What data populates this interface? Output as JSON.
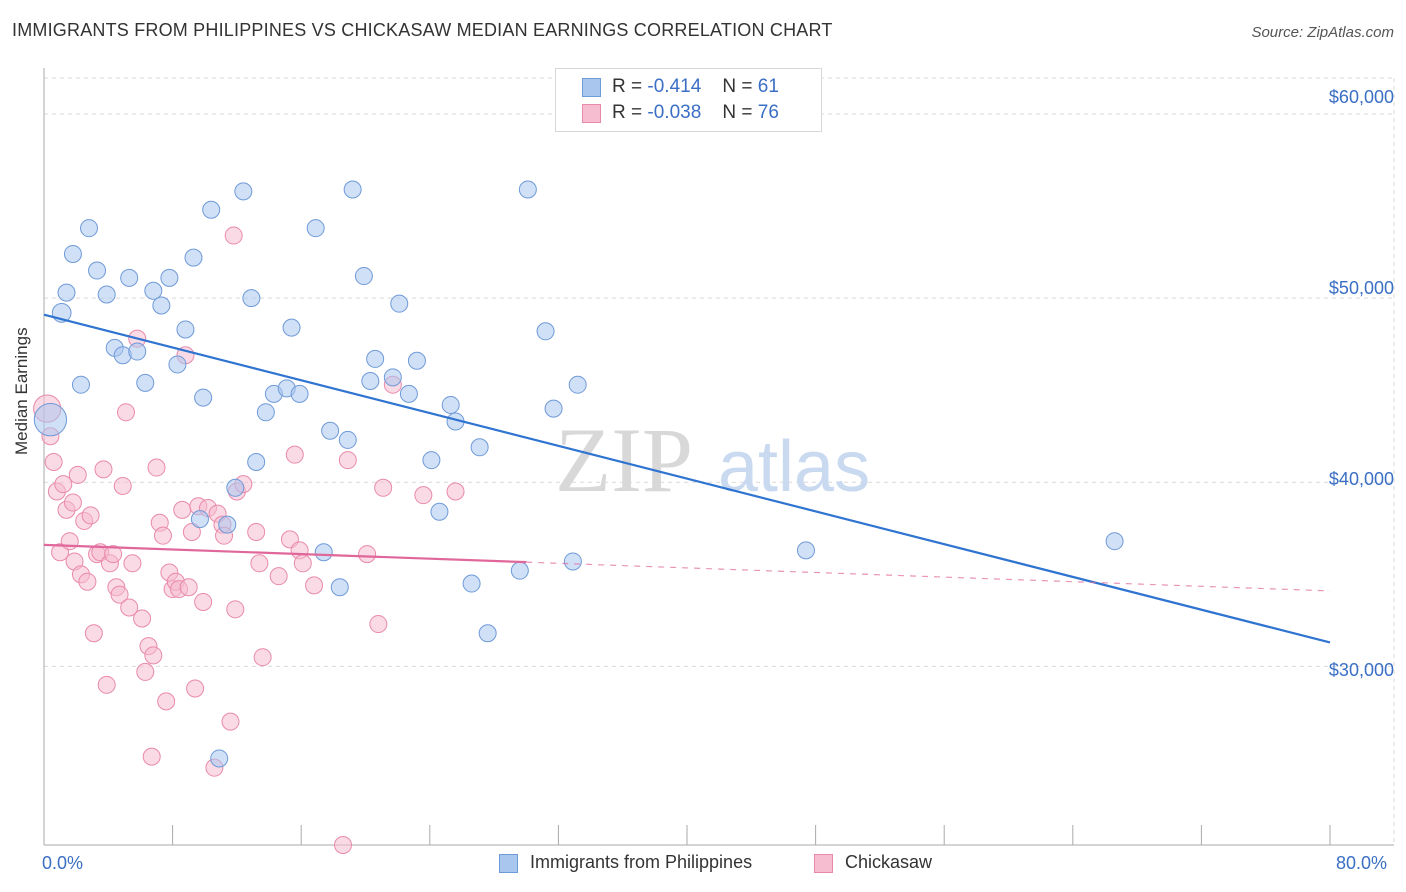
{
  "header": {
    "title": "IMMIGRANTS FROM PHILIPPINES VS CHICKASAW MEDIAN EARNINGS CORRELATION CHART",
    "source": "Source: ZipAtlas.com"
  },
  "colors": {
    "blue_fill": "#a9c6ef",
    "blue_stroke": "#6f9ad8",
    "blue_line": "#2f74d0",
    "pink_fill": "#f6bcd0",
    "pink_stroke": "#e98aab",
    "pink_line": "#e0679a",
    "axis_text": "#3a6fc4",
    "grid": "#d9d9d9"
  },
  "stats": {
    "r_label": "R =",
    "n_label": "N =",
    "rows": [
      {
        "r": "-0.414",
        "n": "61"
      },
      {
        "r": "-0.038",
        "n": "76"
      }
    ]
  },
  "legend": {
    "items": [
      {
        "label": "Immigrants from Philippines"
      },
      {
        "label": "Chickasaw"
      }
    ]
  },
  "watermark": {
    "part1": "ZIP",
    "part2": "atlas"
  },
  "chart_data": {
    "type": "scatter",
    "title": "IMMIGRANTS FROM PHILIPPINES VS CHICKASAW MEDIAN EARNINGS CORRELATION CHART",
    "xlabel": "",
    "ylabel": "Median Earnings",
    "xlim": [
      0,
      80
    ],
    "ylim": [
      20300,
      62500
    ],
    "x_tick_labels": [
      "0.0%",
      "80.0%"
    ],
    "y_ticks": [
      30000,
      40000,
      50000,
      60000
    ],
    "y_tick_labels": [
      "$30,000",
      "$40,000",
      "$50,000",
      "$60,000"
    ],
    "grid": true,
    "legend_position": "bottom-center",
    "series": [
      {
        "name": "Immigrants from Philippines",
        "r": -0.414,
        "n": 61,
        "trend": {
          "x0": 0,
          "y0": 49100,
          "x1": 80,
          "y1": 31300,
          "solid_to": 80
        },
        "points": [
          [
            0.4,
            43400,
            1.9
          ],
          [
            1.1,
            49200,
            1.1
          ],
          [
            1.4,
            50300,
            1
          ],
          [
            1.8,
            52400,
            1
          ],
          [
            2.3,
            45300,
            1
          ],
          [
            2.8,
            53800,
            1
          ],
          [
            3.3,
            51500,
            1
          ],
          [
            3.9,
            50200,
            1
          ],
          [
            4.4,
            47300,
            1
          ],
          [
            4.9,
            46900,
            1
          ],
          [
            5.3,
            51100,
            1
          ],
          [
            5.8,
            47100,
            1
          ],
          [
            6.3,
            45400,
            1
          ],
          [
            6.8,
            50400,
            1
          ],
          [
            7.3,
            49600,
            1
          ],
          [
            7.8,
            51100,
            1
          ],
          [
            8.3,
            46400,
            1
          ],
          [
            8.8,
            48300,
            1
          ],
          [
            9.3,
            52200,
            1
          ],
          [
            9.9,
            44600,
            1
          ],
          [
            10.4,
            54800,
            1
          ],
          [
            10.9,
            25000,
            1
          ],
          [
            11.4,
            37700,
            1
          ],
          [
            11.9,
            39700,
            1
          ],
          [
            12.4,
            55800,
            1
          ],
          [
            12.9,
            50000,
            1
          ],
          [
            13.2,
            41100,
            1
          ],
          [
            13.8,
            43800,
            1
          ],
          [
            14.3,
            44800,
            1
          ],
          [
            15.1,
            45100,
            1
          ],
          [
            15.4,
            48400,
            1
          ],
          [
            15.9,
            44800,
            1
          ],
          [
            16.9,
            53800,
            1
          ],
          [
            17.4,
            36200,
            1
          ],
          [
            17.8,
            42800,
            1
          ],
          [
            18.4,
            34300,
            1
          ],
          [
            18.9,
            42300,
            1
          ],
          [
            19.2,
            55900,
            1
          ],
          [
            19.9,
            51200,
            1
          ],
          [
            20.3,
            45500,
            1
          ],
          [
            20.6,
            46700,
            1
          ],
          [
            21.7,
            45700,
            1
          ],
          [
            22.1,
            49700,
            1
          ],
          [
            22.7,
            44800,
            1
          ],
          [
            23.2,
            46600,
            1
          ],
          [
            24.1,
            41200,
            1
          ],
          [
            24.6,
            38400,
            1
          ],
          [
            25.3,
            44200,
            1
          ],
          [
            25.6,
            43300,
            1
          ],
          [
            26.6,
            34500,
            1
          ],
          [
            27.1,
            41900,
            1
          ],
          [
            27.6,
            31800,
            1
          ],
          [
            29.6,
            35200,
            1
          ],
          [
            30.1,
            55900,
            1
          ],
          [
            31.2,
            48200,
            1
          ],
          [
            31.7,
            44000,
            1
          ],
          [
            32.9,
            35700,
            1
          ],
          [
            33.2,
            45300,
            1
          ],
          [
            47.4,
            36300,
            1
          ],
          [
            66.6,
            36800,
            1
          ],
          [
            9.7,
            38000,
            1
          ]
        ]
      },
      {
        "name": "Chickasaw",
        "r": -0.038,
        "n": 76,
        "trend": {
          "x0": 0,
          "y0": 36600,
          "x1": 80,
          "y1": 34100,
          "solid_to": 30
        },
        "points": [
          [
            0.2,
            44000,
            1.6
          ],
          [
            0.4,
            42500,
            1
          ],
          [
            0.6,
            41100,
            1
          ],
          [
            0.8,
            39500,
            1
          ],
          [
            1.0,
            36200,
            1
          ],
          [
            1.2,
            39900,
            1
          ],
          [
            1.4,
            38500,
            1
          ],
          [
            1.6,
            36800,
            1
          ],
          [
            1.8,
            38900,
            1
          ],
          [
            1.9,
            35700,
            1
          ],
          [
            2.1,
            40400,
            1
          ],
          [
            2.3,
            35000,
            1
          ],
          [
            2.5,
            37900,
            1
          ],
          [
            2.7,
            34600,
            1
          ],
          [
            2.9,
            38200,
            1
          ],
          [
            3.1,
            31800,
            1
          ],
          [
            3.3,
            36100,
            1
          ],
          [
            3.5,
            36200,
            1
          ],
          [
            3.7,
            40700,
            1
          ],
          [
            3.9,
            29000,
            1
          ],
          [
            4.1,
            35600,
            1
          ],
          [
            4.3,
            36100,
            1
          ],
          [
            4.5,
            34300,
            1
          ],
          [
            4.7,
            33900,
            1
          ],
          [
            4.9,
            39800,
            1
          ],
          [
            5.1,
            43800,
            1
          ],
          [
            5.3,
            33200,
            1
          ],
          [
            5.5,
            35600,
            1
          ],
          [
            5.8,
            47800,
            1
          ],
          [
            6.1,
            32600,
            1
          ],
          [
            6.3,
            29700,
            1
          ],
          [
            6.5,
            31100,
            1
          ],
          [
            6.7,
            25100,
            1
          ],
          [
            6.8,
            30600,
            1
          ],
          [
            7.0,
            40800,
            1
          ],
          [
            7.2,
            37800,
            1
          ],
          [
            7.4,
            37100,
            1
          ],
          [
            7.6,
            28100,
            1
          ],
          [
            7.8,
            35100,
            1
          ],
          [
            8.0,
            34200,
            1
          ],
          [
            8.2,
            34600,
            1
          ],
          [
            8.4,
            34200,
            1
          ],
          [
            8.6,
            38500,
            1
          ],
          [
            8.8,
            46900,
            1
          ],
          [
            9.0,
            34300,
            1
          ],
          [
            9.2,
            37300,
            1
          ],
          [
            9.4,
            28800,
            1
          ],
          [
            9.6,
            38700,
            1
          ],
          [
            9.9,
            33500,
            1
          ],
          [
            10.2,
            38600,
            1
          ],
          [
            10.6,
            24500,
            1
          ],
          [
            10.8,
            38300,
            1
          ],
          [
            11.1,
            37700,
            1
          ],
          [
            11.2,
            37100,
            1
          ],
          [
            11.6,
            27000,
            1
          ],
          [
            11.8,
            53400,
            1
          ],
          [
            11.9,
            33100,
            1
          ],
          [
            12.0,
            39500,
            1
          ],
          [
            12.4,
            39900,
            1
          ],
          [
            13.2,
            37300,
            1
          ],
          [
            13.4,
            35600,
            1
          ],
          [
            13.6,
            30500,
            1
          ],
          [
            14.6,
            34900,
            1
          ],
          [
            15.3,
            36900,
            1
          ],
          [
            15.6,
            41500,
            1
          ],
          [
            15.9,
            36300,
            1
          ],
          [
            16.1,
            35600,
            1
          ],
          [
            16.8,
            34400,
            1
          ],
          [
            18.6,
            20300,
            1
          ],
          [
            18.9,
            41200,
            1
          ],
          [
            20.1,
            36100,
            1
          ],
          [
            20.8,
            32300,
            1
          ],
          [
            21.1,
            39700,
            1
          ],
          [
            21.7,
            45300,
            1
          ],
          [
            23.6,
            39300,
            1
          ],
          [
            25.6,
            39500,
            1
          ]
        ]
      }
    ]
  }
}
